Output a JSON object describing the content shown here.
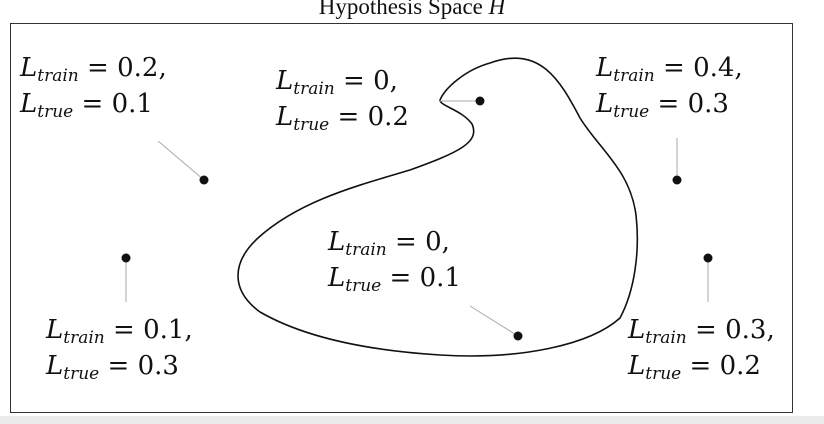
{
  "title": {
    "prefix": "Hypothesis Space",
    "symbol": "H"
  },
  "symbols": {
    "loss": "L",
    "train_sub": "train",
    "true_sub": "true"
  },
  "points": [
    {
      "id": "top-left",
      "train": "0.2",
      "true": "0.1",
      "inside_region": false,
      "sep_train": ",",
      "sep_true": ""
    },
    {
      "id": "mid-left",
      "train": "0.1",
      "true": "0.3",
      "inside_region": false,
      "sep_train": ",",
      "sep_true": ""
    },
    {
      "id": "region-hook",
      "train": "0",
      "true": "0.2",
      "inside_region": true,
      "sep_train": ",",
      "sep_true": ""
    },
    {
      "id": "region-center",
      "train": "0",
      "true": "0.1",
      "inside_region": true,
      "sep_train": ",",
      "sep_true": ""
    },
    {
      "id": "top-right",
      "train": "0.4",
      "true": "0.3",
      "inside_region": false,
      "sep_train": ",",
      "sep_true": ""
    },
    {
      "id": "mid-right",
      "train": "0.3",
      "true": "0.2",
      "inside_region": false,
      "sep_train": ",",
      "sep_true": ""
    }
  ],
  "colors": {
    "ink": "#111111",
    "leader": "#aaaaaa",
    "frame": "#333333"
  }
}
